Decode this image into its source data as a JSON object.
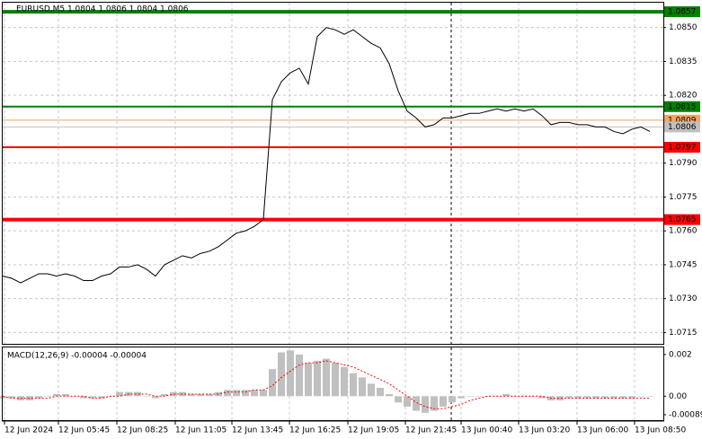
{
  "chart_data": [
    {
      "type": "line",
      "title": "EURUSD,M5  1.0804 1.0806 1.0804 1.0806",
      "grid": true,
      "xlim": [
        0,
        73.5
      ],
      "xticks": [
        {
          "value": 0.2,
          "label": "12 Jun 2024"
        },
        {
          "value": 6.2,
          "label": "12 Jun 05:45"
        },
        {
          "value": 12.7,
          "label": "12 Jun 08:25"
        },
        {
          "value": 19.2,
          "label": "12 Jun 11:05"
        },
        {
          "value": 25.5,
          "label": "12 Jun 13:45"
        },
        {
          "value": 31.9,
          "label": "12 Jun 16:25"
        },
        {
          "value": 38.4,
          "label": "12 Jun 19:05"
        },
        {
          "value": 44.8,
          "label": "12 Jun 21:45"
        },
        {
          "value": 51,
          "label": "13 Jun 00:40"
        },
        {
          "value": 57.4,
          "label": "13 Jun 03:20"
        },
        {
          "value": 63.9,
          "label": "13 Jun 06:00"
        },
        {
          "value": 70.3,
          "label": "13 Jun 08:50"
        }
      ],
      "ylim": [
        1.071,
        1.0861
      ],
      "yticks": [
        {
          "value": 1.085,
          "label": "1.0850"
        },
        1.0835,
        {
          "value": 1.082,
          "label": "1.0820"
        },
        {
          "value": 1.079,
          "label": "1.0790"
        },
        1.0775,
        {
          "value": 1.076,
          "label": "1.0760"
        },
        1.0745,
        {
          "value": 1.073,
          "label": "1.0730"
        },
        1.0715
      ],
      "x": [
        0,
        1,
        2,
        3,
        4,
        5,
        6,
        7,
        8,
        9,
        10,
        11,
        12,
        13,
        14,
        15,
        16,
        17,
        18,
        19,
        20,
        21,
        22,
        23,
        24,
        25,
        26,
        27,
        28,
        29,
        30,
        31,
        32,
        33,
        34,
        35,
        36,
        37,
        38,
        39,
        40,
        41,
        42,
        43,
        44,
        45,
        46,
        47,
        48,
        49,
        50,
        51,
        52,
        53,
        54,
        55,
        56,
        57,
        58,
        59,
        60,
        61,
        62,
        63,
        64,
        65,
        66,
        67,
        68,
        69,
        70,
        71,
        72
      ],
      "series": [
        {
          "color": "#000000",
          "values": [
            1.074,
            1.0739,
            1.0737,
            1.0739,
            1.0741,
            1.0741,
            1.074,
            1.0741,
            1.074,
            1.0738,
            1.0738,
            1.074,
            1.0741,
            1.0744,
            1.0744,
            1.0745,
            1.0743,
            1.074,
            1.0745,
            1.0747,
            1.0749,
            1.0748,
            1.075,
            1.0751,
            1.0753,
            1.0756,
            1.0759,
            1.076,
            1.0762,
            1.0765,
            1.0818,
            1.0826,
            1.083,
            1.0832,
            1.0825,
            1.0846,
            1.085,
            1.0849,
            1.0847,
            1.0849,
            1.0846,
            1.0843,
            1.0841,
            1.0834,
            1.0822,
            1.0813,
            1.081,
            1.0806,
            1.0807,
            1.081,
            1.081,
            1.0811,
            1.0812,
            1.0812,
            1.0813,
            1.0814,
            1.0813,
            1.0814,
            1.0813,
            1.0814,
            1.0811,
            1.0807,
            1.0808,
            1.0808,
            1.0807,
            1.0807,
            1.0806,
            1.0806,
            1.0804,
            1.0803,
            1.0805,
            1.0806,
            1.0804
          ]
        }
      ],
      "hlines": [
        {
          "value": 1.0857,
          "color": "#008000"
        },
        {
          "value": 1.0815,
          "color": "#008000"
        },
        {
          "value": 1.0809,
          "color": "#f4a460"
        },
        {
          "value": 1.0806,
          "color": "#c0c0c0"
        },
        {
          "value": 1.0797,
          "color": "#ff0000"
        },
        {
          "value": 1.0765,
          "color": "#ff0000"
        }
      ]
    },
    {
      "type": "bar",
      "title": "MACD(12,26,9) -0.00004 -0.00004",
      "ylim": [
        -0.00115,
        0.00234
      ],
      "yticks": [
        0.002,
        {
          "value": 0,
          "label": "0.00"
        },
        -0.00089
      ],
      "series": [
        {
          "type": "bar",
          "color": "#c0c0c0",
          "values": [
            -0.0001,
            -0.0001,
            -0.0002,
            -0.0002,
            -0.0001,
            0,
            0.0001,
            0.0001,
            0,
            -0.0001,
            -0.0001,
            -0.0001,
            0,
            0.0002,
            0.0002,
            0.0002,
            0,
            -0.0001,
            0.0001,
            0.0002,
            0.0002,
            0.0001,
            0.0001,
            0.0001,
            0.0002,
            0.0003,
            0.0003,
            0.0003,
            0.0003,
            0.0003,
            0.0013,
            0.0021,
            0.0022,
            0.002,
            0.0016,
            0.0017,
            0.0018,
            0.0016,
            0.0014,
            0.0011,
            0.0009,
            0.0006,
            0.0004,
            0.0001,
            -0.0003,
            -0.0005,
            -0.0007,
            -0.0008,
            -0.0007,
            -0.0005,
            -0.0003,
            -0.0001,
            0,
            0,
            0,
            0,
            0.0001,
            0,
            0,
            0,
            -0.0001,
            -0.0002,
            -0.0002,
            -0.0001,
            -0.0001,
            -0.0001,
            -0.0001,
            -0.0001,
            -0.0001,
            -0.0001,
            -0.0001,
            0,
            0
          ]
        },
        {
          "type": "line",
          "color": "#ff0000",
          "values": [
            0,
            -0.0001,
            -0.0001,
            -0.0001,
            -0.0001,
            -0.0001,
            0,
            0,
            0,
            0,
            -0.0001,
            -0.0001,
            0,
            0,
            0.0001,
            0.0001,
            0.0001,
            0,
            0,
            0.0001,
            0.0001,
            0.0001,
            0.0001,
            0.0001,
            0.0001,
            0.0002,
            0.0002,
            0.0002,
            0.0003,
            0.0003,
            0.0005,
            0.0009,
            0.0012,
            0.0015,
            0.0016,
            0.0016,
            0.0017,
            0.0016,
            0.0015,
            0.0014,
            0.0012,
            0.001,
            0.0008,
            0.0006,
            0.0003,
            0,
            -0.0003,
            -0.0005,
            -0.0006,
            -0.0006,
            -0.0005,
            -0.0004,
            -0.0002,
            -0.0001,
            0,
            0,
            0,
            0,
            0,
            0,
            0,
            -0.0001,
            -0.0001,
            -0.0001,
            -0.0001,
            -0.0001,
            -0.0001,
            -0.0001,
            -0.0001,
            -0.0001,
            -0.0001,
            -0.0001,
            -0.0001
          ]
        }
      ]
    }
  ]
}
